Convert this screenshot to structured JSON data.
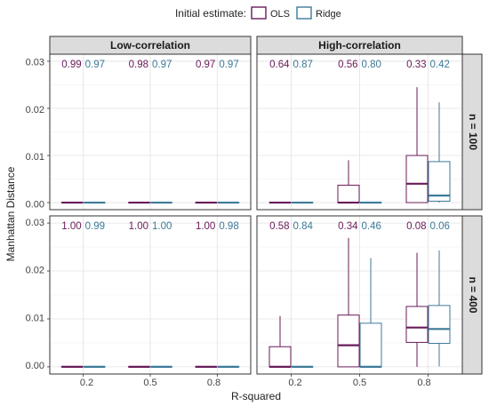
{
  "legend": {
    "title": "Initial estimate:",
    "items": [
      {
        "label": "OLS",
        "color": "#6a1b5a"
      },
      {
        "label": "Ridge",
        "color": "#3d7a99"
      }
    ]
  },
  "facets": {
    "columns": [
      "Low-correlation",
      "High-correlation"
    ],
    "rows": [
      "n = 100",
      "n = 400"
    ]
  },
  "axes": {
    "xlabel": "R-squared",
    "ylabel": "Manhattan Distance",
    "x_ticks": [
      "0.2",
      "0.5",
      "0.8"
    ],
    "y_ticks": [
      "0.00",
      "0.01",
      "0.02",
      "0.03"
    ]
  },
  "chart_data": {
    "type": "boxplot",
    "facet_by": [
      "column",
      "row"
    ],
    "ylim": [
      -0.0015,
      0.0315
    ],
    "grid": true,
    "legend_placement": "top",
    "panels": [
      {
        "column": "Low-correlation",
        "row": "n = 100",
        "labels": [
          [
            "0.99",
            "0.97"
          ],
          [
            "0.98",
            "0.97"
          ],
          [
            "0.97",
            "0.97"
          ]
        ],
        "boxes": [
          [
            [
              0,
              0,
              0,
              0,
              0
            ],
            [
              0,
              0,
              0,
              0,
              0
            ]
          ],
          [
            [
              0,
              0,
              0,
              0,
              0
            ],
            [
              0,
              0,
              0,
              0,
              0
            ]
          ],
          [
            [
              0,
              0,
              0,
              0,
              0
            ],
            [
              0,
              0,
              0,
              0,
              0
            ]
          ]
        ]
      },
      {
        "column": "High-correlation",
        "row": "n = 100",
        "labels": [
          [
            "0.64",
            "0.87"
          ],
          [
            "0.56",
            "0.80"
          ],
          [
            "0.33",
            "0.42"
          ]
        ],
        "boxes": [
          [
            [
              0,
              0,
              0,
              0,
              0
            ],
            [
              0,
              0,
              0,
              0,
              0
            ]
          ],
          [
            [
              0,
              0,
              0,
              0.0037,
              0.009
            ],
            [
              0,
              0,
              0,
              0,
              0
            ]
          ],
          [
            [
              0,
              0,
              0.004,
              0.01,
              0.0245
            ],
            [
              0,
              0.0003,
              0.0015,
              0.0087,
              0.0213
            ]
          ]
        ]
      },
      {
        "column": "Low-correlation",
        "row": "n = 400",
        "labels": [
          [
            "1.00",
            "0.99"
          ],
          [
            "1.00",
            "1.00"
          ],
          [
            "1.00",
            "0.98"
          ]
        ],
        "boxes": [
          [
            [
              0,
              0,
              0,
              0,
              0
            ],
            [
              0,
              0,
              0,
              0,
              0
            ]
          ],
          [
            [
              0,
              0,
              0,
              0,
              0
            ],
            [
              0,
              0,
              0,
              0,
              0
            ]
          ],
          [
            [
              0,
              0,
              0,
              0,
              0
            ],
            [
              0,
              0,
              0,
              0,
              0
            ]
          ]
        ]
      },
      {
        "column": "High-correlation",
        "row": "n = 400",
        "labels": [
          [
            "0.58",
            "0.84"
          ],
          [
            "0.34",
            "0.46"
          ],
          [
            "0.08",
            "0.06"
          ]
        ],
        "boxes": [
          [
            [
              0,
              0,
              0,
              0.0042,
              0.0106
            ],
            [
              0,
              0,
              0,
              0,
              0
            ]
          ],
          [
            [
              0,
              0,
              0.0045,
              0.0108,
              0.0269
            ],
            [
              0,
              0,
              0,
              0.0091,
              0.0227
            ]
          ],
          [
            [
              0,
              0.0051,
              0.0082,
              0.0126,
              0.0238
            ],
            [
              0.0001,
              0.0049,
              0.0079,
              0.0128,
              0.0243
            ]
          ]
        ]
      }
    ]
  }
}
